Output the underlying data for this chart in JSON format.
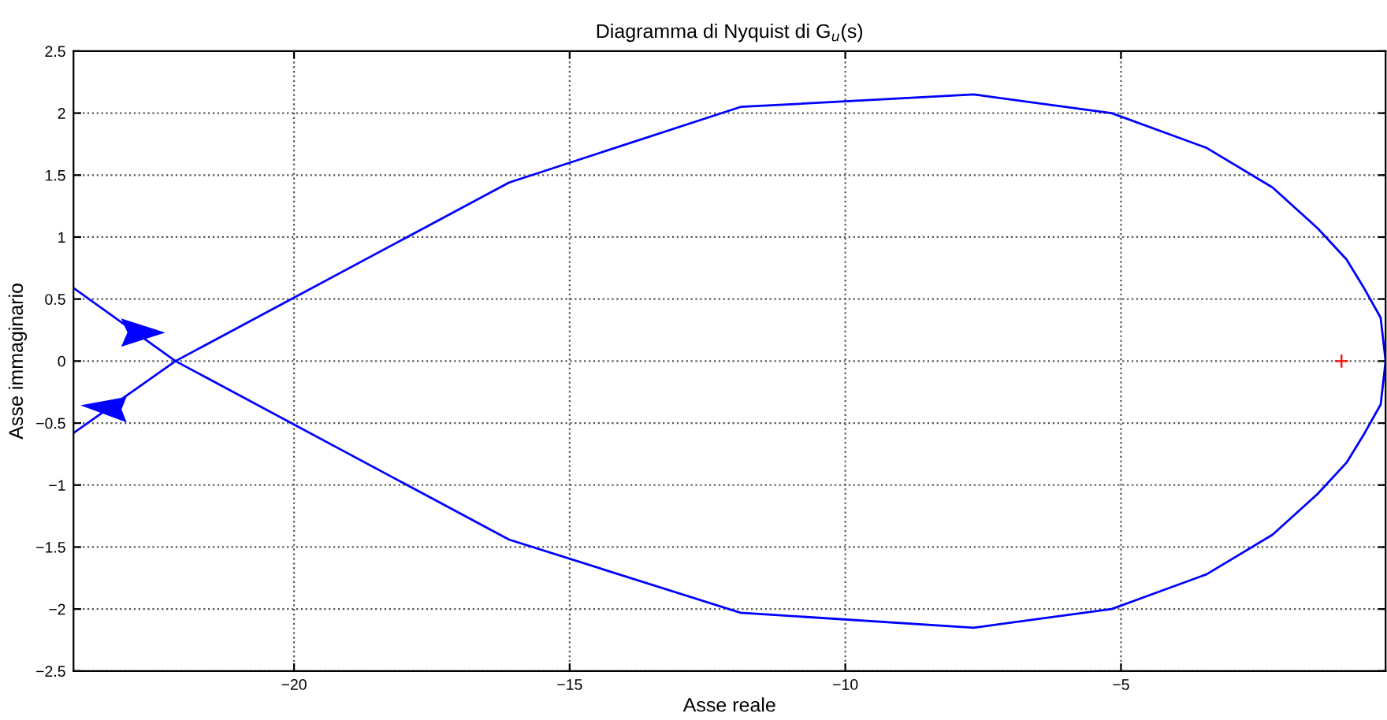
{
  "chart_data": {
    "type": "line",
    "title": "Diagramma di Nyquist di G$_{u}$(s)",
    "xlabel": "Asse reale",
    "ylabel": "Asse immaginario",
    "series": [
      {
        "color": "#0000ff",
        "marker": "none",
        "x": [
          -24,
          -22.15,
          -16.1,
          -11.9,
          -7.67,
          -5.17,
          -3.45,
          -2.25,
          -1.43,
          -0.91,
          -0.58,
          -0.29,
          -0.2,
          -0.29,
          -0.58,
          -0.91,
          -1.43,
          -2.25,
          -3.45,
          -5.17,
          -7.67,
          -11.9,
          -16.1,
          -22.15,
          -24
        ],
        "values": [
          0.59,
          0,
          -1.44,
          -2.03,
          -2.15,
          -2.0,
          -1.72,
          -1.4,
          -1.07,
          -0.82,
          -0.58,
          -0.35,
          0,
          0.35,
          0.58,
          0.82,
          1.07,
          1.4,
          1.72,
          2.0,
          2.15,
          2.05,
          1.44,
          0,
          -0.58
        ]
      },
      {
        "type": "scatter",
        "color": "#ff0000",
        "marker": "cross",
        "x": [
          -1
        ],
        "values": [
          0
        ]
      }
    ],
    "xlim": [
      -24,
      -0.2
    ],
    "ylim": [
      -2.5,
      2.5
    ],
    "xticks": [
      {
        "value": -20,
        "label": "−20"
      },
      {
        "value": -15,
        "label": "−15"
      },
      {
        "value": -10,
        "label": "−10"
      },
      {
        "value": -5,
        "label": "−5"
      }
    ],
    "yticks": [
      {
        "value": -2.5,
        "label": "−2.5"
      },
      {
        "value": -2,
        "label": "−2"
      },
      {
        "value": -1.5,
        "label": "−1.5"
      },
      {
        "value": -1,
        "label": "−1"
      },
      {
        "value": -0.5,
        "label": "−0.5"
      },
      0,
      0.5,
      1,
      1.5,
      2,
      2.5
    ],
    "grid": true,
    "line_style": "solid"
  }
}
